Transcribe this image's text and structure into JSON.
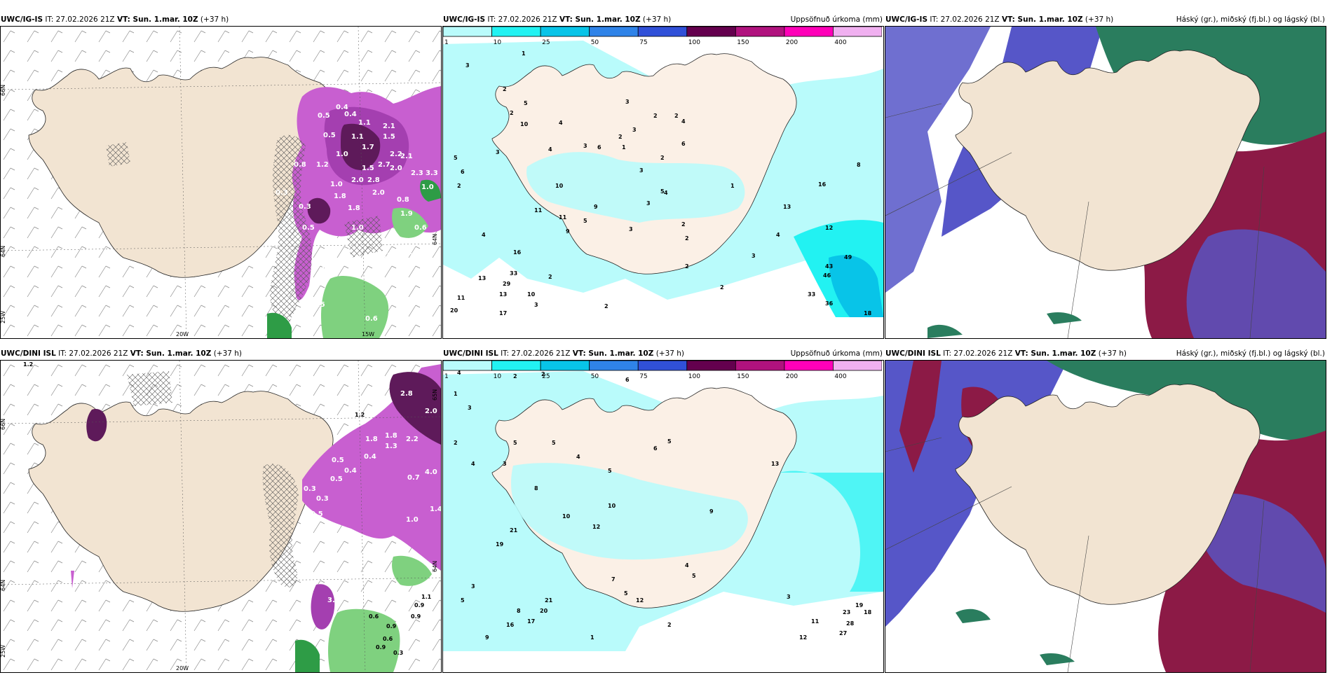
{
  "rows": [
    {
      "prefix": "UWC/IG-IS",
      "it": "27.02.2026 21Z",
      "vt": "Sun. 1.mar. 10Z",
      "lead": "(+37 h)"
    },
    {
      "prefix": "UWC/DINI ISL",
      "it": "27.02.2026 21Z",
      "vt": "Sun. 1.mar. 10Z",
      "lead": "(+37 h)"
    }
  ],
  "labels": {
    "it": "IT:",
    "vt": "VT:"
  },
  "precip_title": "Uppsöfnuð úrkoma (mm)",
  "cloud_title": "Háský (gr.), miðský (fj.bl.) og lágský (bl.)",
  "axis": {
    "lat66": "66N",
    "lat64": "64N",
    "lon25": "25W",
    "lon20": "20W",
    "lon15": "15W",
    "lat65": "65N"
  },
  "colorbar": {
    "ticks": [
      "1",
      "10",
      "25",
      "50",
      "75",
      "100",
      "150",
      "200",
      "400"
    ],
    "colors": [
      "#b9fbfb",
      "#22f2f2",
      "#08c4e8",
      "#2f83e8",
      "#3050d8",
      "#64004e",
      "#b0127e",
      "#ff00b8",
      "#f0b0f0"
    ]
  },
  "colors": {
    "land": "#f2e4d2",
    "sea": "#ffffff",
    "precip_light": "#b9fbfb",
    "precip_mid": "#22f2f2",
    "snow_light": "#f0b0f0",
    "snow_mid": "#c85fd0",
    "snow_dark": "#5e1a5a",
    "rain_green": "#7fd17f",
    "high_cloud": "#5656c8",
    "mid_cloud": "#2a7d5e",
    "low_cloud": "#8c1a46"
  },
  "panel1": {
    "labels": [
      "0.3",
      "0.5",
      "0.4",
      "0.5",
      "1.1",
      "0.4",
      "0.8",
      "1.0",
      "1.2",
      "1.1",
      "1.7",
      "2.1",
      "1.5",
      "2.2",
      "1.5",
      "2.7",
      "2.0",
      "2.3",
      "0.8",
      "1.0",
      "2.0",
      "2.8",
      "3.3",
      "0.3",
      "1.8",
      "2.0",
      "0.5",
      "1.9",
      "1.0",
      "0.6",
      "0.5",
      "0.4",
      "1.0",
      "1.4",
      "0.6",
      "1.2",
      "0.5",
      "1.8",
      "2.1"
    ]
  },
  "panel2": {
    "labels": [
      "2",
      "3",
      "1",
      "2",
      "5",
      "2",
      "5",
      "6",
      "10",
      "4",
      "3",
      "4",
      "2",
      "3",
      "3",
      "6",
      "1",
      "2",
      "3",
      "3",
      "2",
      "2",
      "4",
      "2",
      "10",
      "5",
      "3",
      "9",
      "4",
      "2",
      "11",
      "11",
      "2",
      "1",
      "16",
      "33",
      "29",
      "13",
      "10",
      "11",
      "13",
      "13",
      "12",
      "3",
      "43",
      "46",
      "49",
      "33",
      "36",
      "20",
      "17",
      "18",
      "16",
      "4",
      "8",
      "2",
      "2",
      "4",
      "3",
      "6",
      "9",
      "5",
      "2",
      "3",
      "2"
    ]
  },
  "panel4": {
    "labels": [
      "1.2",
      "2.8",
      "1.2",
      "2.0",
      "1.8",
      "2.2",
      "0.5",
      "0.4",
      "0.5",
      "0.3",
      "0.3",
      "0.5",
      "0.4",
      "1.8",
      "1.3",
      "4.0",
      "0.7",
      "1.4",
      "1.0",
      "3.6",
      "0.6",
      "0.9",
      "0.9",
      "0.6",
      "0.9",
      "0.3",
      "1.1",
      "0.9"
    ]
  },
  "panel5": {
    "labels": [
      "4",
      "2",
      "2",
      "4",
      "6",
      "2",
      "3",
      "1",
      "2",
      "5",
      "4",
      "5",
      "6",
      "5",
      "3",
      "4",
      "5",
      "8",
      "10",
      "10",
      "21",
      "19",
      "12",
      "13",
      "9",
      "3",
      "5",
      "16",
      "17",
      "20",
      "21",
      "8",
      "7",
      "5",
      "12",
      "4",
      "5",
      "2",
      "11",
      "19",
      "23",
      "18",
      "28",
      "27",
      "12",
      "3",
      "9",
      "1"
    ]
  }
}
